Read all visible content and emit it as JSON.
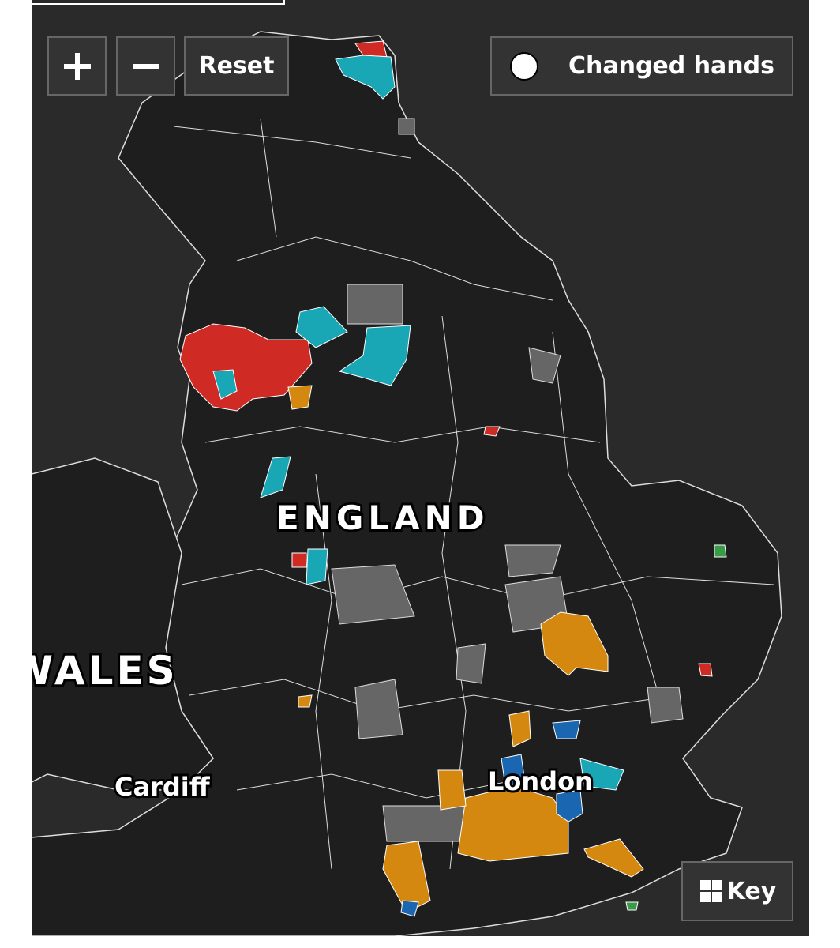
{
  "controls": {
    "reset": "Reset",
    "changed_hands": "Changed hands",
    "key": "Key"
  },
  "labels": {
    "england": "ENGLAND",
    "wales": "WALES",
    "cardiff": "Cardiff",
    "london": "London"
  }
}
